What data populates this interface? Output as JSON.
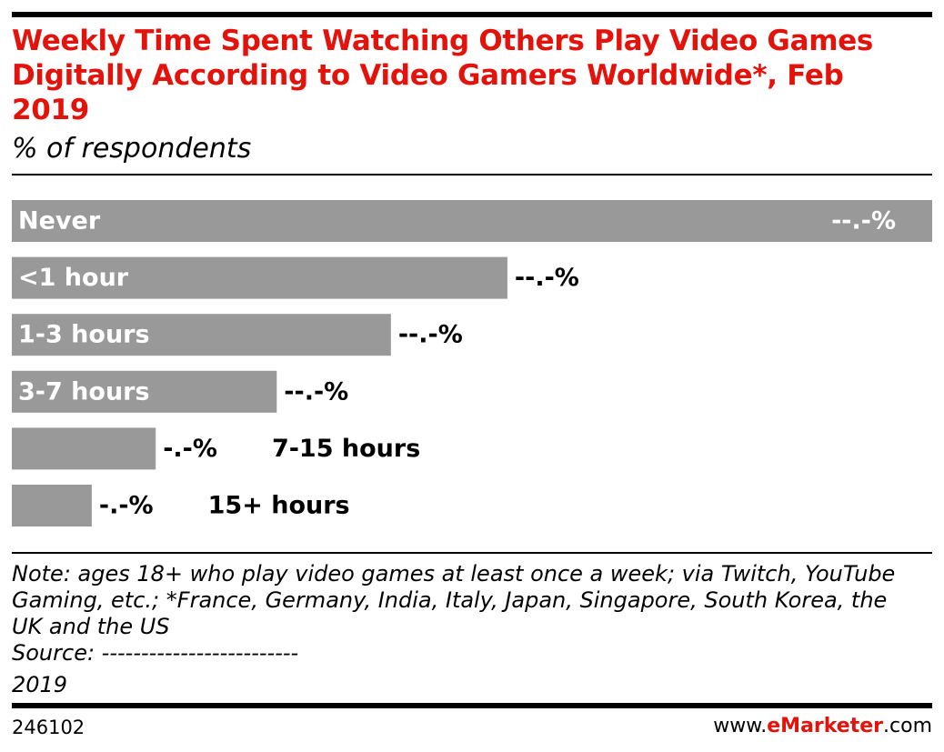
{
  "chart_data": {
    "type": "bar",
    "orientation": "horizontal",
    "title": "Weekly Time Spent Watching Others Play Video Games Digitally According to Video Gamers Worldwide*, Feb 2019",
    "subtitle": "% of respondents",
    "categories": [
      "Never",
      "<1 hour",
      "1-3 hours",
      "3-7 hours",
      "7-15 hours",
      "15+ hours"
    ],
    "values": [
      40.3,
      21.7,
      16.6,
      11.6,
      6.3,
      3.5
    ],
    "value_labels": [
      "--.-%",
      "--.-%",
      "--.-%",
      "--.-%",
      "-.-%",
      "-.-%"
    ],
    "color": "#999999",
    "note": "Note: ages 18+ who play video games at least once a week; via Twitch, YouTube Gaming, etc.; *France, Germany, India, Italy, Japan, Singapore, South Korea, the UK and the US",
    "source": [
      "Source: -------------------------",
      "2019"
    ],
    "chart_id": "246102",
    "brand": [
      "www.",
      "eMarketer",
      ".com"
    ]
  }
}
